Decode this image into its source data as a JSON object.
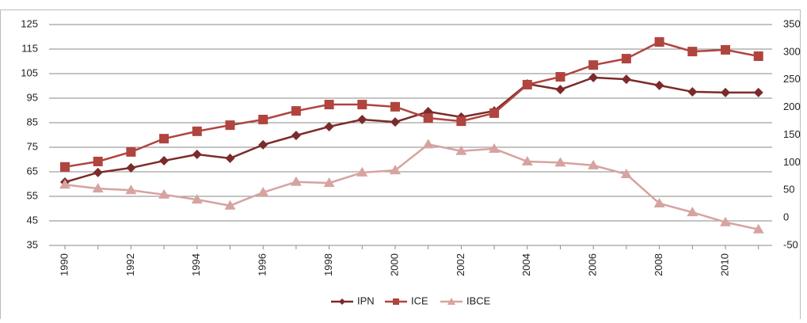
{
  "chart_data": {
    "type": "line",
    "categories": [
      1990,
      null,
      1992,
      null,
      1994,
      null,
      1996,
      null,
      1998,
      null,
      2000,
      null,
      2002,
      null,
      2004,
      null,
      2006,
      null,
      2008,
      null,
      2010,
      null
    ],
    "series": [
      {
        "name": "IPN",
        "color": "#7b2b2a",
        "marker": "diamond",
        "values": [
          60.8,
          64.7,
          66.6,
          69.5,
          72.1,
          70.5,
          76,
          79.8,
          83.4,
          86.3,
          85.3,
          89.5,
          87.3,
          89.8,
          100.8,
          98.5,
          103.4,
          102.7,
          100.2,
          97.6,
          97.3,
          97.3
        ]
      },
      {
        "name": "ICE",
        "color": "#b0443f",
        "marker": "square",
        "values": [
          67,
          69.2,
          73.1,
          78.5,
          81.5,
          84,
          86.3,
          89.8,
          92.4,
          92.4,
          91.5,
          86.9,
          85.6,
          88.9,
          100.5,
          103.7,
          108.5,
          111.1,
          117.9,
          114,
          114.7,
          112.1
        ]
      },
      {
        "name": "IBCE",
        "color": "#d6a3a0",
        "marker": "triangle",
        "axis": "y2",
        "values": [
          60,
          53,
          50,
          42,
          33,
          22,
          46,
          65,
          63,
          82,
          86,
          133,
          121,
          125,
          102,
          100,
          95,
          79,
          26,
          10,
          -8,
          -21
        ]
      }
    ],
    "ylim": [
      35,
      125
    ],
    "yticks": [
      35,
      45,
      55,
      65,
      75,
      85,
      95,
      105,
      115,
      125
    ],
    "y2lim": [
      -50,
      350
    ],
    "y2ticks": [
      -50,
      0,
      50,
      100,
      150,
      200,
      250,
      300,
      350
    ],
    "grid": true,
    "legend": "bottom"
  }
}
